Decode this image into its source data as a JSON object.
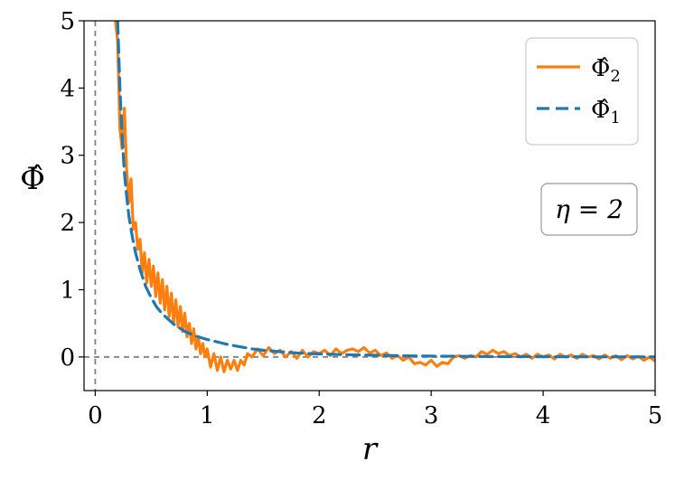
{
  "chart_data": {
    "type": "line",
    "title": "",
    "xlabel": "r",
    "ylabel": "Φ̂",
    "xlim": [
      -0.1,
      5.0
    ],
    "ylim": [
      -0.5,
      5.0
    ],
    "xticks": [
      0,
      1,
      2,
      3,
      4,
      5
    ],
    "yticks": [
      0,
      1,
      2,
      3,
      4,
      5
    ],
    "xtick_labels": [
      "0",
      "1",
      "2",
      "3",
      "4",
      "5"
    ],
    "ytick_labels": [
      "0",
      "1",
      "2",
      "3",
      "4",
      "5"
    ],
    "grid": false,
    "reference_lines": [
      {
        "orientation": "horizontal",
        "value": 0,
        "style": "dashed",
        "color": "#808080"
      },
      {
        "orientation": "vertical",
        "value": 0,
        "style": "dashed",
        "color": "#808080"
      }
    ],
    "legend": {
      "placement": "top-right",
      "entries": [
        {
          "series": "Φ̂2",
          "label_main": "Φ̂",
          "label_sub": "2"
        },
        {
          "series": "Φ̂1",
          "label_main": "Φ̂",
          "label_sub": "1"
        }
      ]
    },
    "annotation": {
      "text": "η = 2",
      "placement": "right"
    },
    "series": [
      {
        "name": "Φ̂2",
        "color": "#ff7f0e",
        "style": "solid",
        "x": [
          0.18,
          0.2,
          0.22,
          0.24,
          0.26,
          0.28,
          0.3,
          0.32,
          0.34,
          0.36,
          0.38,
          0.4,
          0.42,
          0.44,
          0.46,
          0.48,
          0.5,
          0.52,
          0.54,
          0.56,
          0.58,
          0.6,
          0.62,
          0.64,
          0.66,
          0.68,
          0.7,
          0.72,
          0.74,
          0.76,
          0.78,
          0.8,
          0.82,
          0.84,
          0.86,
          0.88,
          0.9,
          0.92,
          0.94,
          0.96,
          0.98,
          1.0,
          1.03,
          1.06,
          1.09,
          1.12,
          1.15,
          1.18,
          1.21,
          1.24,
          1.27,
          1.3,
          1.33,
          1.36,
          1.4,
          1.45,
          1.5,
          1.55,
          1.6,
          1.65,
          1.7,
          1.75,
          1.8,
          1.85,
          1.9,
          1.95,
          2.0,
          2.05,
          2.1,
          2.15,
          2.2,
          2.25,
          2.3,
          2.35,
          2.4,
          2.45,
          2.5,
          2.55,
          2.6,
          2.65,
          2.7,
          2.75,
          2.8,
          2.85,
          2.9,
          2.95,
          3.0,
          3.05,
          3.1,
          3.15,
          3.2,
          3.25,
          3.3,
          3.35,
          3.4,
          3.45,
          3.5,
          3.55,
          3.6,
          3.65,
          3.7,
          3.75,
          3.8,
          3.85,
          3.9,
          3.95,
          4.0,
          4.05,
          4.1,
          4.15,
          4.2,
          4.25,
          4.3,
          4.35,
          4.4,
          4.45,
          4.5,
          4.55,
          4.6,
          4.65,
          4.7,
          4.75,
          4.8,
          4.85,
          4.9,
          4.95,
          5.0
        ],
        "y": [
          5.0,
          4.7,
          3.4,
          3.1,
          3.7,
          2.8,
          2.3,
          2.65,
          1.9,
          2.0,
          1.6,
          1.75,
          1.25,
          1.55,
          1.1,
          1.45,
          1.05,
          1.35,
          0.9,
          1.25,
          0.8,
          1.15,
          0.7,
          1.05,
          0.6,
          0.95,
          0.5,
          0.85,
          0.45,
          0.75,
          0.38,
          0.65,
          0.3,
          0.5,
          0.2,
          0.42,
          0.12,
          0.3,
          0.05,
          0.2,
          0.0,
          0.12,
          -0.15,
          0.05,
          -0.2,
          0.0,
          -0.22,
          -0.05,
          -0.18,
          -0.05,
          -0.2,
          -0.05,
          -0.12,
          0.05,
          0.0,
          0.12,
          0.02,
          0.14,
          0.05,
          0.1,
          0.0,
          0.08,
          -0.02,
          0.1,
          0.0,
          0.08,
          0.05,
          0.1,
          0.02,
          0.12,
          0.05,
          0.1,
          0.12,
          0.08,
          0.14,
          0.06,
          0.1,
          0.02,
          0.06,
          -0.02,
          0.02,
          -0.05,
          0.0,
          -0.1,
          -0.08,
          -0.12,
          -0.05,
          -0.14,
          -0.08,
          -0.1,
          0.0,
          0.02,
          -0.02,
          0.02,
          0.0,
          0.08,
          0.04,
          0.1,
          0.05,
          0.08,
          0.02,
          0.05,
          0.0,
          0.04,
          -0.02,
          0.04,
          0.0,
          0.03,
          -0.03,
          0.04,
          0.0,
          0.03,
          -0.02,
          0.04,
          0.0,
          0.02,
          -0.03,
          0.03,
          -0.02,
          0.02,
          -0.04,
          0.02,
          -0.03,
          0.01,
          -0.05,
          0.0,
          -0.06
        ]
      },
      {
        "name": "Φ̂1",
        "color": "#1f77b4",
        "style": "dashed",
        "x": [
          0.2,
          0.22,
          0.24,
          0.26,
          0.28,
          0.3,
          0.33,
          0.36,
          0.4,
          0.45,
          0.5,
          0.55,
          0.6,
          0.7,
          0.8,
          0.9,
          1.0,
          1.1,
          1.2,
          1.3,
          1.4,
          1.5,
          1.6,
          1.8,
          2.0,
          2.2,
          2.4,
          2.6,
          2.8,
          3.0,
          3.3,
          3.6,
          4.0,
          4.5,
          5.0
        ],
        "y": [
          5.0,
          4.0,
          3.3,
          2.75,
          2.4,
          2.1,
          1.8,
          1.55,
          1.3,
          1.05,
          0.88,
          0.74,
          0.64,
          0.49,
          0.38,
          0.31,
          0.26,
          0.22,
          0.18,
          0.15,
          0.12,
          0.1,
          0.085,
          0.06,
          0.045,
          0.035,
          0.028,
          0.022,
          0.017,
          0.013,
          0.009,
          0.006,
          0.004,
          0.002,
          0.001
        ]
      }
    ]
  }
}
